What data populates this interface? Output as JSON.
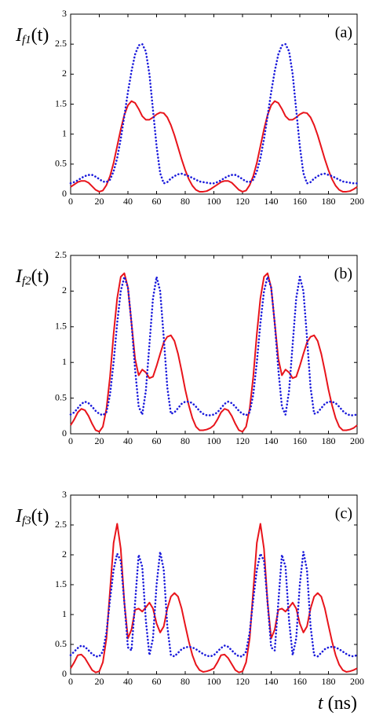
{
  "chart_data": [
    {
      "type": "line",
      "panel_label": "(a)",
      "ylabel": {
        "symbol": "I",
        "sub": "f1",
        "arg": "(t)"
      },
      "x": [
        0,
        2.5,
        5,
        7.5,
        10,
        12.5,
        15,
        17.5,
        20,
        22.5,
        25,
        27.5,
        30,
        32.5,
        35,
        37.5,
        40,
        42.5,
        45,
        47.5,
        50,
        52.5,
        55,
        57.5,
        60,
        62.5,
        65,
        67.5,
        70,
        72.5,
        75,
        77.5,
        80,
        82.5,
        85,
        87.5,
        90,
        92.5,
        95,
        97.5,
        100,
        102.5,
        105,
        107.5,
        110,
        112.5,
        115,
        117.5,
        120,
        122.5,
        125,
        127.5,
        130,
        132.5,
        135,
        137.5,
        140,
        142.5,
        145,
        147.5,
        150,
        152.5,
        155,
        157.5,
        160,
        162.5,
        165,
        167.5,
        170,
        172.5,
        175,
        177.5,
        180,
        182.5,
        185,
        187.5,
        190,
        192.5,
        195,
        197.5,
        200
      ],
      "xlim": [
        0,
        200
      ],
      "xticks": [
        0,
        20,
        40,
        60,
        80,
        100,
        120,
        140,
        160,
        180,
        200
      ],
      "ylim": [
        0,
        3
      ],
      "yticks": [
        0,
        0.5,
        1,
        1.5,
        2,
        2.5,
        3
      ],
      "series": [
        {
          "color": "#e8141b",
          "style": "solid",
          "values": [
            0.12,
            0.16,
            0.2,
            0.22,
            0.22,
            0.19,
            0.13,
            0.07,
            0.04,
            0.06,
            0.15,
            0.3,
            0.52,
            0.8,
            1.08,
            1.32,
            1.48,
            1.55,
            1.52,
            1.42,
            1.3,
            1.24,
            1.24,
            1.28,
            1.33,
            1.36,
            1.35,
            1.28,
            1.15,
            0.98,
            0.78,
            0.58,
            0.4,
            0.25,
            0.14,
            0.07,
            0.04,
            0.04,
            0.05,
            0.08,
            0.12,
            0.16,
            0.2,
            0.22,
            0.22,
            0.19,
            0.13,
            0.07,
            0.04,
            0.06,
            0.15,
            0.3,
            0.52,
            0.8,
            1.08,
            1.32,
            1.48,
            1.55,
            1.52,
            1.42,
            1.3,
            1.24,
            1.24,
            1.28,
            1.33,
            1.36,
            1.35,
            1.28,
            1.15,
            0.98,
            0.78,
            0.58,
            0.4,
            0.25,
            0.14,
            0.07,
            0.04,
            0.04,
            0.05,
            0.08,
            0.12
          ]
        },
        {
          "color": "#1a1adb",
          "style": "dotted",
          "values": [
            0.18,
            0.2,
            0.23,
            0.27,
            0.3,
            0.32,
            0.32,
            0.29,
            0.25,
            0.21,
            0.2,
            0.24,
            0.38,
            0.6,
            0.92,
            1.3,
            1.7,
            2.05,
            2.33,
            2.48,
            2.5,
            2.38,
            2.0,
            1.4,
            0.8,
            0.35,
            0.18,
            0.2,
            0.26,
            0.3,
            0.33,
            0.34,
            0.32,
            0.3,
            0.27,
            0.24,
            0.21,
            0.2,
            0.19,
            0.18,
            0.18,
            0.2,
            0.23,
            0.27,
            0.3,
            0.32,
            0.32,
            0.29,
            0.25,
            0.21,
            0.2,
            0.24,
            0.38,
            0.6,
            0.92,
            1.3,
            1.7,
            2.05,
            2.33,
            2.48,
            2.5,
            2.38,
            2.0,
            1.4,
            0.8,
            0.35,
            0.18,
            0.2,
            0.26,
            0.3,
            0.33,
            0.34,
            0.32,
            0.3,
            0.27,
            0.24,
            0.21,
            0.2,
            0.19,
            0.18,
            0.18
          ]
        }
      ]
    },
    {
      "type": "line",
      "panel_label": "(b)",
      "ylabel": {
        "symbol": "I",
        "sub": "f2",
        "arg": "(t)"
      },
      "x": [
        0,
        2.5,
        5,
        7.5,
        10,
        12.5,
        15,
        17.5,
        20,
        22.5,
        25,
        27.5,
        30,
        32.5,
        35,
        37.5,
        40,
        42.5,
        45,
        47.5,
        50,
        52.5,
        55,
        57.5,
        60,
        62.5,
        65,
        67.5,
        70,
        72.5,
        75,
        77.5,
        80,
        82.5,
        85,
        87.5,
        90,
        92.5,
        95,
        97.5,
        100,
        102.5,
        105,
        107.5,
        110,
        112.5,
        115,
        117.5,
        120,
        122.5,
        125,
        127.5,
        130,
        132.5,
        135,
        137.5,
        140,
        142.5,
        145,
        147.5,
        150,
        152.5,
        155,
        157.5,
        160,
        162.5,
        165,
        167.5,
        170,
        172.5,
        175,
        177.5,
        180,
        182.5,
        185,
        187.5,
        190,
        192.5,
        195,
        197.5,
        200
      ],
      "xlim": [
        0,
        200
      ],
      "xticks": [
        0,
        20,
        40,
        60,
        80,
        100,
        120,
        140,
        160,
        180,
        200
      ],
      "ylim": [
        0,
        2.5
      ],
      "yticks": [
        0,
        0.5,
        1,
        1.5,
        2,
        2.5
      ],
      "series": [
        {
          "color": "#e8141b",
          "style": "solid",
          "values": [
            0.12,
            0.2,
            0.3,
            0.35,
            0.33,
            0.25,
            0.14,
            0.05,
            0.03,
            0.1,
            0.35,
            0.8,
            1.4,
            1.9,
            2.2,
            2.25,
            2.05,
            1.55,
            1.05,
            0.82,
            0.9,
            0.86,
            0.78,
            0.8,
            0.95,
            1.12,
            1.28,
            1.36,
            1.38,
            1.3,
            1.12,
            0.88,
            0.62,
            0.4,
            0.22,
            0.1,
            0.05,
            0.05,
            0.06,
            0.08,
            0.12,
            0.2,
            0.3,
            0.35,
            0.33,
            0.25,
            0.14,
            0.05,
            0.03,
            0.1,
            0.35,
            0.8,
            1.4,
            1.9,
            2.2,
            2.25,
            2.05,
            1.55,
            1.05,
            0.82,
            0.9,
            0.86,
            0.78,
            0.8,
            0.95,
            1.12,
            1.28,
            1.36,
            1.38,
            1.3,
            1.12,
            0.88,
            0.62,
            0.4,
            0.22,
            0.1,
            0.05,
            0.05,
            0.06,
            0.08,
            0.12
          ]
        },
        {
          "color": "#1a1adb",
          "style": "dotted",
          "values": [
            0.27,
            0.3,
            0.36,
            0.42,
            0.45,
            0.43,
            0.38,
            0.32,
            0.28,
            0.26,
            0.3,
            0.55,
            1.0,
            1.55,
            2.0,
            2.2,
            2.05,
            1.55,
            0.9,
            0.38,
            0.27,
            0.6,
            1.25,
            1.9,
            2.2,
            2.0,
            1.35,
            0.65,
            0.28,
            0.3,
            0.36,
            0.42,
            0.45,
            0.45,
            0.43,
            0.38,
            0.32,
            0.28,
            0.26,
            0.26,
            0.27,
            0.3,
            0.36,
            0.42,
            0.45,
            0.43,
            0.38,
            0.32,
            0.28,
            0.26,
            0.3,
            0.55,
            1.0,
            1.55,
            2.0,
            2.2,
            2.05,
            1.55,
            0.9,
            0.38,
            0.27,
            0.6,
            1.25,
            1.9,
            2.2,
            2.0,
            1.35,
            0.65,
            0.28,
            0.3,
            0.36,
            0.42,
            0.45,
            0.45,
            0.43,
            0.38,
            0.32,
            0.28,
            0.26,
            0.26,
            0.27
          ]
        }
      ]
    },
    {
      "type": "line",
      "panel_label": "(c)",
      "ylabel": {
        "symbol": "I",
        "sub": "f3",
        "arg": "(t)"
      },
      "xlabel": {
        "symbol": "t",
        "unit": "(ns)"
      },
      "x": [
        0,
        2.5,
        5,
        7.5,
        10,
        12.5,
        15,
        17.5,
        20,
        22.5,
        25,
        27.5,
        30,
        32.5,
        35,
        37.5,
        40,
        42.5,
        45,
        47.5,
        50,
        52.5,
        55,
        57.5,
        60,
        62.5,
        65,
        67.5,
        70,
        72.5,
        75,
        77.5,
        80,
        82.5,
        85,
        87.5,
        90,
        92.5,
        95,
        97.5,
        100,
        102.5,
        105,
        107.5,
        110,
        112.5,
        115,
        117.5,
        120,
        122.5,
        125,
        127.5,
        130,
        132.5,
        135,
        137.5,
        140,
        142.5,
        145,
        147.5,
        150,
        152.5,
        155,
        157.5,
        160,
        162.5,
        165,
        167.5,
        170,
        172.5,
        175,
        177.5,
        180,
        182.5,
        185,
        187.5,
        190,
        192.5,
        195,
        197.5,
        200
      ],
      "xlim": [
        0,
        200
      ],
      "xticks": [
        0,
        20,
        40,
        60,
        80,
        100,
        120,
        140,
        160,
        180,
        200
      ],
      "ylim": [
        0,
        3
      ],
      "yticks": [
        0,
        0.5,
        1,
        1.5,
        2,
        2.5,
        3
      ],
      "series": [
        {
          "color": "#e8141b",
          "style": "solid",
          "values": [
            0.1,
            0.2,
            0.32,
            0.33,
            0.27,
            0.17,
            0.07,
            0.03,
            0.05,
            0.2,
            0.6,
            1.4,
            2.2,
            2.52,
            2.1,
            1.2,
            0.6,
            0.75,
            1.08,
            1.1,
            1.05,
            1.12,
            1.2,
            1.1,
            0.85,
            0.7,
            0.8,
            1.1,
            1.3,
            1.36,
            1.3,
            1.1,
            0.82,
            0.55,
            0.32,
            0.16,
            0.07,
            0.04,
            0.05,
            0.07,
            0.1,
            0.2,
            0.32,
            0.33,
            0.27,
            0.17,
            0.07,
            0.03,
            0.05,
            0.2,
            0.6,
            1.4,
            2.2,
            2.52,
            2.1,
            1.2,
            0.6,
            0.75,
            1.08,
            1.1,
            1.05,
            1.12,
            1.2,
            1.1,
            0.85,
            0.7,
            0.8,
            1.1,
            1.3,
            1.36,
            1.3,
            1.1,
            0.82,
            0.55,
            0.32,
            0.16,
            0.07,
            0.04,
            0.05,
            0.07,
            0.1
          ]
        },
        {
          "color": "#1a1adb",
          "style": "dotted",
          "values": [
            0.32,
            0.38,
            0.44,
            0.48,
            0.46,
            0.4,
            0.34,
            0.3,
            0.3,
            0.38,
            0.7,
            1.25,
            1.75,
            2.02,
            1.9,
            1.2,
            0.45,
            0.4,
            1.2,
            2.0,
            1.8,
            0.9,
            0.32,
            0.6,
            1.5,
            2.05,
            1.75,
            0.8,
            0.32,
            0.3,
            0.36,
            0.42,
            0.45,
            0.46,
            0.45,
            0.42,
            0.38,
            0.34,
            0.31,
            0.3,
            0.32,
            0.38,
            0.44,
            0.48,
            0.46,
            0.4,
            0.34,
            0.3,
            0.3,
            0.38,
            0.7,
            1.25,
            1.75,
            2.02,
            1.9,
            1.2,
            0.45,
            0.4,
            1.2,
            2.0,
            1.8,
            0.9,
            0.32,
            0.6,
            1.5,
            2.05,
            1.75,
            0.8,
            0.32,
            0.3,
            0.36,
            0.42,
            0.45,
            0.46,
            0.45,
            0.42,
            0.38,
            0.34,
            0.31,
            0.3,
            0.32
          ]
        }
      ]
    }
  ]
}
